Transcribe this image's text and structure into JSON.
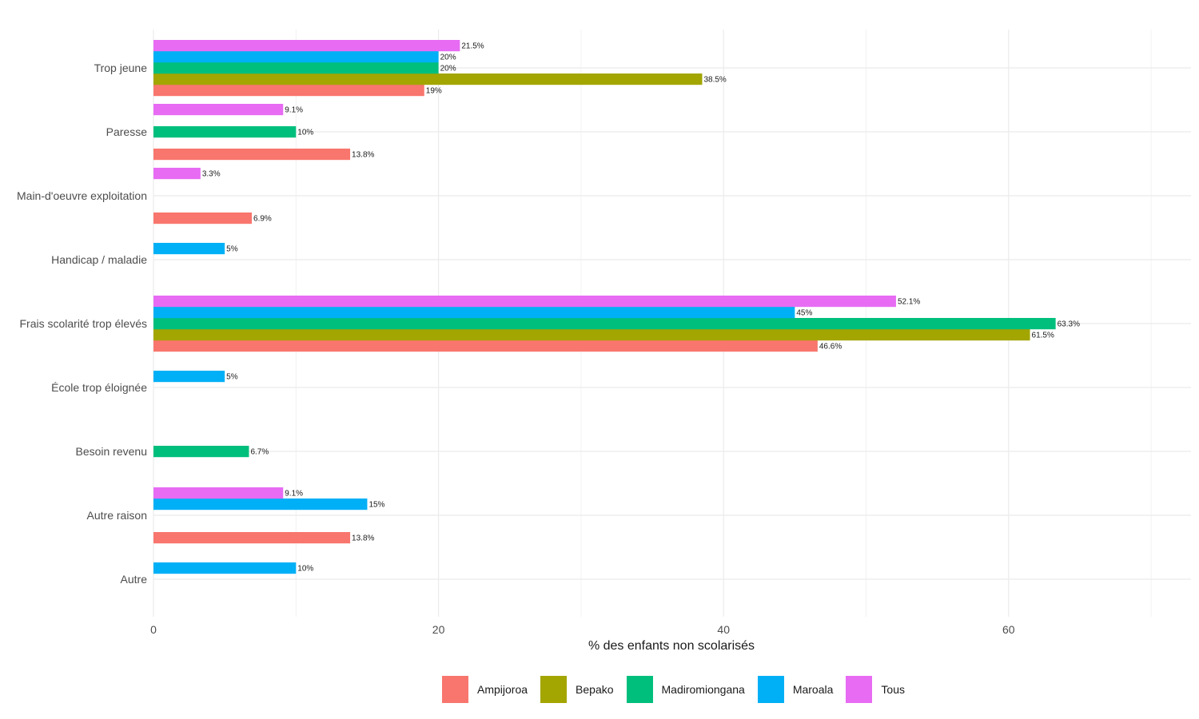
{
  "chart_data": {
    "type": "bar",
    "orientation": "horizontal",
    "title": "",
    "xlabel": "% des enfants non scolarisés",
    "ylabel": "",
    "xlim": [
      0,
      72.8
    ],
    "xticks": [
      0,
      20,
      40,
      60
    ],
    "grid": true,
    "legend_position": "bottom",
    "categories": [
      "Trop jeune",
      "Paresse",
      "Main-d'oeuvre exploitation",
      "Handicap / maladie",
      "Frais scolarité trop élevés",
      "École trop éloignée",
      "Besoin revenu",
      "Autre raison",
      "Autre"
    ],
    "series": [
      {
        "name": "Ampijoroa",
        "color": "#F8766D",
        "values": [
          19,
          13.8,
          6.9,
          null,
          46.6,
          null,
          null,
          13.8,
          null
        ],
        "labels": [
          "19%",
          "13.8%",
          "6.9%",
          null,
          "46.6%",
          null,
          null,
          "13.8%",
          null
        ]
      },
      {
        "name": "Bepako",
        "color": "#A3A500",
        "values": [
          38.5,
          null,
          null,
          null,
          61.5,
          null,
          null,
          null,
          null
        ],
        "labels": [
          "38.5%",
          null,
          null,
          null,
          "61.5%",
          null,
          null,
          null,
          null
        ]
      },
      {
        "name": "Madiromiongana",
        "color": "#00BF7D",
        "values": [
          20,
          10,
          null,
          null,
          63.3,
          null,
          6.7,
          null,
          null
        ],
        "labels": [
          "20%",
          "10%",
          null,
          null,
          "63.3%",
          null,
          "6.7%",
          null,
          null
        ]
      },
      {
        "name": "Maroala",
        "color": "#00B0F6",
        "values": [
          20,
          null,
          null,
          5,
          45,
          5,
          null,
          15,
          10
        ],
        "labels": [
          "20%",
          null,
          null,
          "5%",
          "45%",
          "5%",
          null,
          "15%",
          "10%"
        ]
      },
      {
        "name": "Tous",
        "color": "#E76BF3",
        "values": [
          21.5,
          9.1,
          3.3,
          null,
          52.1,
          null,
          null,
          9.1,
          null
        ],
        "labels": [
          "21.5%",
          "9.1%",
          "3.3%",
          null,
          "52.1%",
          null,
          null,
          "9.1%",
          null
        ]
      }
    ]
  }
}
